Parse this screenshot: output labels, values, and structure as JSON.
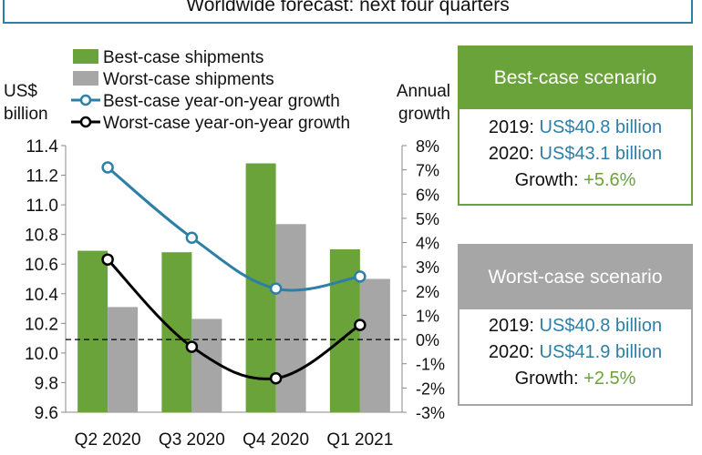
{
  "header": {
    "title": "Worldwide forecast: next four quarters"
  },
  "chart_data": {
    "type": "bar",
    "categories": [
      "Q2 2020",
      "Q3 2020",
      "Q4 2020",
      "Q1 2021"
    ],
    "series": [
      {
        "name": "Best-case shipments",
        "kind": "bar",
        "axis": "left",
        "color": "#6aa33a",
        "values": [
          10.69,
          10.68,
          11.28,
          10.7
        ]
      },
      {
        "name": "Worst-case shipments",
        "kind": "bar",
        "axis": "left",
        "color": "#a6a6a6",
        "values": [
          10.31,
          10.23,
          10.87,
          10.5
        ]
      },
      {
        "name": "Best-case year-on-year growth",
        "kind": "line",
        "axis": "right",
        "color": "#2e7fa6",
        "values": [
          7.1,
          4.2,
          2.1,
          2.6
        ]
      },
      {
        "name": "Worst-case year-on-year growth",
        "kind": "line",
        "axis": "right",
        "color": "#000000",
        "values": [
          3.3,
          -0.3,
          -1.6,
          0.6
        ]
      }
    ],
    "left_axis": {
      "label_line1": "US$",
      "label_line2": "billion",
      "ylim": [
        9.6,
        11.4
      ],
      "ticks": [
        "9.6",
        "9.8",
        "10.0",
        "10.2",
        "10.4",
        "10.6",
        "10.8",
        "11.0",
        "11.2",
        "11.4"
      ],
      "tick_values": [
        9.6,
        9.8,
        10.0,
        10.2,
        10.4,
        10.6,
        10.8,
        11.0,
        11.2,
        11.4
      ]
    },
    "right_axis": {
      "label_line1": "Annual",
      "label_line2": "growth",
      "ylim": [
        -3,
        8
      ],
      "ticks": [
        "-3%",
        "-2%",
        "-1%",
        "0%",
        "1%",
        "2%",
        "3%",
        "4%",
        "5%",
        "6%",
        "7%",
        "8%"
      ],
      "tick_values": [
        -3,
        -2,
        -1,
        0,
        1,
        2,
        3,
        4,
        5,
        6,
        7,
        8
      ]
    },
    "zero_line": "dashed",
    "grid": false,
    "legend": "top-left"
  },
  "best_panel": {
    "title": "Best-case scenario",
    "line1_label": "2019: ",
    "line1_value": "US$40.8 billion",
    "line2_label": "2020: ",
    "line2_value": "US$43.1 billion",
    "line3_label": "Growth: ",
    "line3_value": "+5.6%"
  },
  "worst_panel": {
    "title": "Worst-case scenario",
    "line1_label": "2019: ",
    "line1_value": "US$40.8 billion",
    "line2_label": "2020: ",
    "line2_value": "US$41.9 billion",
    "line3_label": "Growth: ",
    "line3_value": "+2.5%"
  }
}
